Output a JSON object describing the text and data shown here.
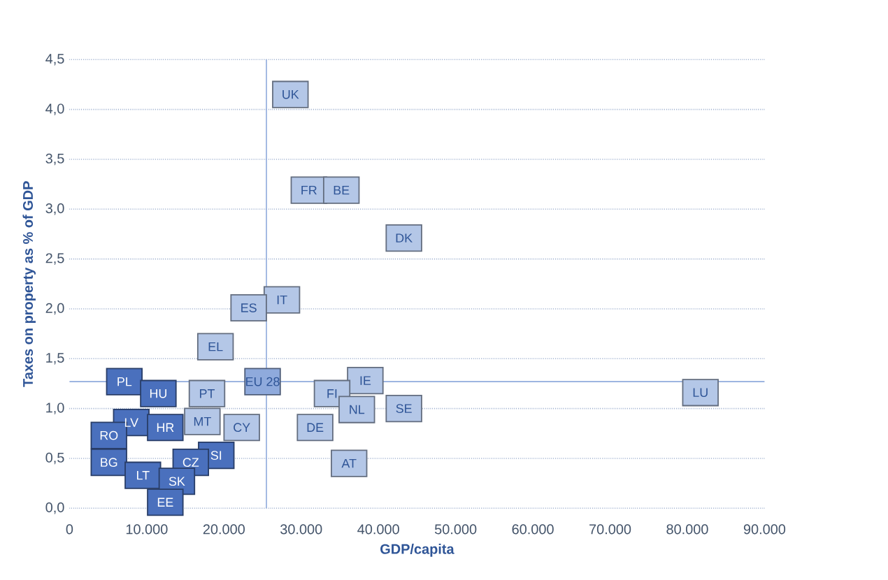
{
  "chart_data": {
    "type": "scatter",
    "xlabel": "GDP/capita",
    "ylabel": "Taxes on property as % of GDP",
    "x": [
      28600,
      31000,
      35200,
      43300,
      27500,
      23200,
      18900,
      7100,
      11500,
      17800,
      25000,
      38300,
      34000,
      81700,
      8000,
      12400,
      17200,
      22300,
      37200,
      43300,
      31800,
      5100,
      5100,
      19000,
      15700,
      9500,
      13900,
      36200,
      12400
    ],
    "values": [
      4.15,
      3.19,
      3.19,
      2.71,
      2.09,
      2.01,
      1.62,
      1.27,
      1.15,
      1.15,
      1.27,
      1.28,
      1.15,
      1.16,
      0.86,
      0.81,
      0.87,
      0.81,
      0.99,
      1.0,
      0.81,
      0.73,
      0.46,
      0.53,
      0.46,
      0.33,
      0.27,
      0.45,
      0.06
    ],
    "colors": [
      "#b4c7e7",
      "#b4c7e7",
      "#b4c7e7",
      "#b4c7e7",
      "#b4c7e7",
      "#b4c7e7",
      "#b4c7e7",
      "#4a70bd",
      "#4a70bd",
      "#b4c7e7",
      "#8faadc",
      "#b4c7e7",
      "#b4c7e7",
      "#b4c7e7",
      "#4a70bd",
      "#4a70bd",
      "#b4c7e7",
      "#b4c7e7",
      "#b4c7e7",
      "#b4c7e7",
      "#b4c7e7",
      "#4a70bd",
      "#4a70bd",
      "#4a70bd",
      "#4a70bd",
      "#4a70bd",
      "#4a70bd",
      "#b4c7e7",
      "#4a70bd"
    ],
    "marker": "square",
    "annotations": [
      {
        "text": "UK",
        "x": 28600,
        "y": 4.15
      },
      {
        "text": "FR",
        "x": 31000,
        "y": 3.19
      },
      {
        "text": "BE",
        "x": 35200,
        "y": 3.19
      },
      {
        "text": "DK",
        "x": 43300,
        "y": 2.71
      },
      {
        "text": "IT",
        "x": 27500,
        "y": 2.09
      },
      {
        "text": "ES",
        "x": 23200,
        "y": 2.01
      },
      {
        "text": "EL",
        "x": 18900,
        "y": 1.62
      },
      {
        "text": "PL",
        "x": 7100,
        "y": 1.27
      },
      {
        "text": "HU",
        "x": 11500,
        "y": 1.15
      },
      {
        "text": "PT",
        "x": 17800,
        "y": 1.15
      },
      {
        "text": "EU 28",
        "x": 25000,
        "y": 1.27
      },
      {
        "text": "IE",
        "x": 38300,
        "y": 1.28
      },
      {
        "text": "FI",
        "x": 34000,
        "y": 1.15
      },
      {
        "text": "LU",
        "x": 81700,
        "y": 1.16
      },
      {
        "text": "LV",
        "x": 8000,
        "y": 0.86
      },
      {
        "text": "HR",
        "x": 12400,
        "y": 0.81
      },
      {
        "text": "MT",
        "x": 17200,
        "y": 0.87
      },
      {
        "text": "CY",
        "x": 22300,
        "y": 0.81
      },
      {
        "text": "NL",
        "x": 37200,
        "y": 0.99
      },
      {
        "text": "SE",
        "x": 43300,
        "y": 1.0
      },
      {
        "text": "DE",
        "x": 31800,
        "y": 0.81
      },
      {
        "text": "RO",
        "x": 5100,
        "y": 0.73
      },
      {
        "text": "BG",
        "x": 5100,
        "y": 0.46
      },
      {
        "text": "SI",
        "x": 19000,
        "y": 0.53
      },
      {
        "text": "CZ",
        "x": 15700,
        "y": 0.46
      },
      {
        "text": "LT",
        "x": 9500,
        "y": 0.33
      },
      {
        "text": "SK",
        "x": 13900,
        "y": 0.27
      },
      {
        "text": "AT",
        "x": 36200,
        "y": 0.45
      },
      {
        "text": "EE",
        "x": 12400,
        "y": 0.06
      }
    ],
    "xlim": [
      0,
      90000
    ],
    "ylim": [
      0,
      4.5
    ],
    "xticks": [
      {
        "value": 0,
        "label": "0"
      },
      {
        "value": 10000,
        "label": "10.000"
      },
      {
        "value": 20000,
        "label": "20.000"
      },
      {
        "value": 30000,
        "label": "30.000"
      },
      {
        "value": 40000,
        "label": "40.000"
      },
      {
        "value": 50000,
        "label": "50.000"
      },
      {
        "value": 60000,
        "label": "60.000"
      },
      {
        "value": 70000,
        "label": "70.000"
      },
      {
        "value": 80000,
        "label": "80.000"
      },
      {
        "value": 90000,
        "label": "90.000"
      }
    ],
    "yticks": [
      {
        "value": 0,
        "label": "0,0"
      },
      {
        "value": 0.5,
        "label": "0,5"
      },
      {
        "value": 1,
        "label": "1,0"
      },
      {
        "value": 1.5,
        "label": "1,5"
      },
      {
        "value": 2,
        "label": "2,0"
      },
      {
        "value": 2.5,
        "label": "2,5"
      },
      {
        "value": 3,
        "label": "3,0"
      },
      {
        "value": 3.5,
        "label": "3,5"
      },
      {
        "value": 4,
        "label": "4,0"
      },
      {
        "value": 4.5,
        "label": "4,5"
      }
    ],
    "grid": "y",
    "ref_lines": [
      {
        "axis": "x",
        "value": 25500,
        "color": "#8faadc"
      },
      {
        "axis": "y",
        "value": 1.27,
        "color": "#8faadc"
      }
    ]
  }
}
